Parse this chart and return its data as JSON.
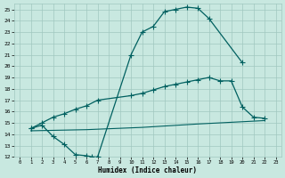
{
  "xlabel": "Humidex (Indice chaleur)",
  "xlim": [
    -0.5,
    23.5
  ],
  "ylim": [
    12,
    25.5
  ],
  "xticks": [
    0,
    1,
    2,
    3,
    4,
    5,
    6,
    7,
    8,
    9,
    10,
    11,
    12,
    13,
    14,
    15,
    16,
    17,
    18,
    19,
    20,
    21,
    22,
    23
  ],
  "yticks": [
    12,
    13,
    14,
    15,
    16,
    17,
    18,
    19,
    20,
    21,
    22,
    23,
    24,
    25
  ],
  "bg_color": "#c8e8e0",
  "grid_color": "#a0c8c0",
  "line_color": "#006060",
  "curve1_x": [
    1,
    2,
    3,
    4,
    5,
    6,
    6.5,
    7,
    10,
    11,
    12,
    13,
    14,
    15,
    16,
    17,
    20
  ],
  "curve1_y": [
    14.5,
    14.8,
    13.8,
    13.1,
    12.2,
    12.1,
    12.0,
    12.0,
    21.0,
    23.0,
    23.5,
    24.8,
    25.0,
    25.2,
    25.1,
    24.2,
    20.3
  ],
  "curve2_x": [
    1,
    2,
    3,
    4,
    5,
    6,
    7,
    10,
    11,
    12,
    13,
    14,
    15,
    16,
    17,
    18,
    19,
    20,
    21,
    22
  ],
  "curve2_y": [
    14.5,
    15.0,
    15.5,
    15.8,
    16.2,
    16.5,
    17.0,
    17.4,
    17.6,
    17.9,
    18.2,
    18.4,
    18.6,
    18.8,
    19.0,
    18.7,
    18.7,
    16.4,
    15.5,
    15.4
  ],
  "curve3_x": [
    1,
    6,
    11,
    16,
    22
  ],
  "curve3_y": [
    14.3,
    14.4,
    14.6,
    14.9,
    15.2
  ]
}
